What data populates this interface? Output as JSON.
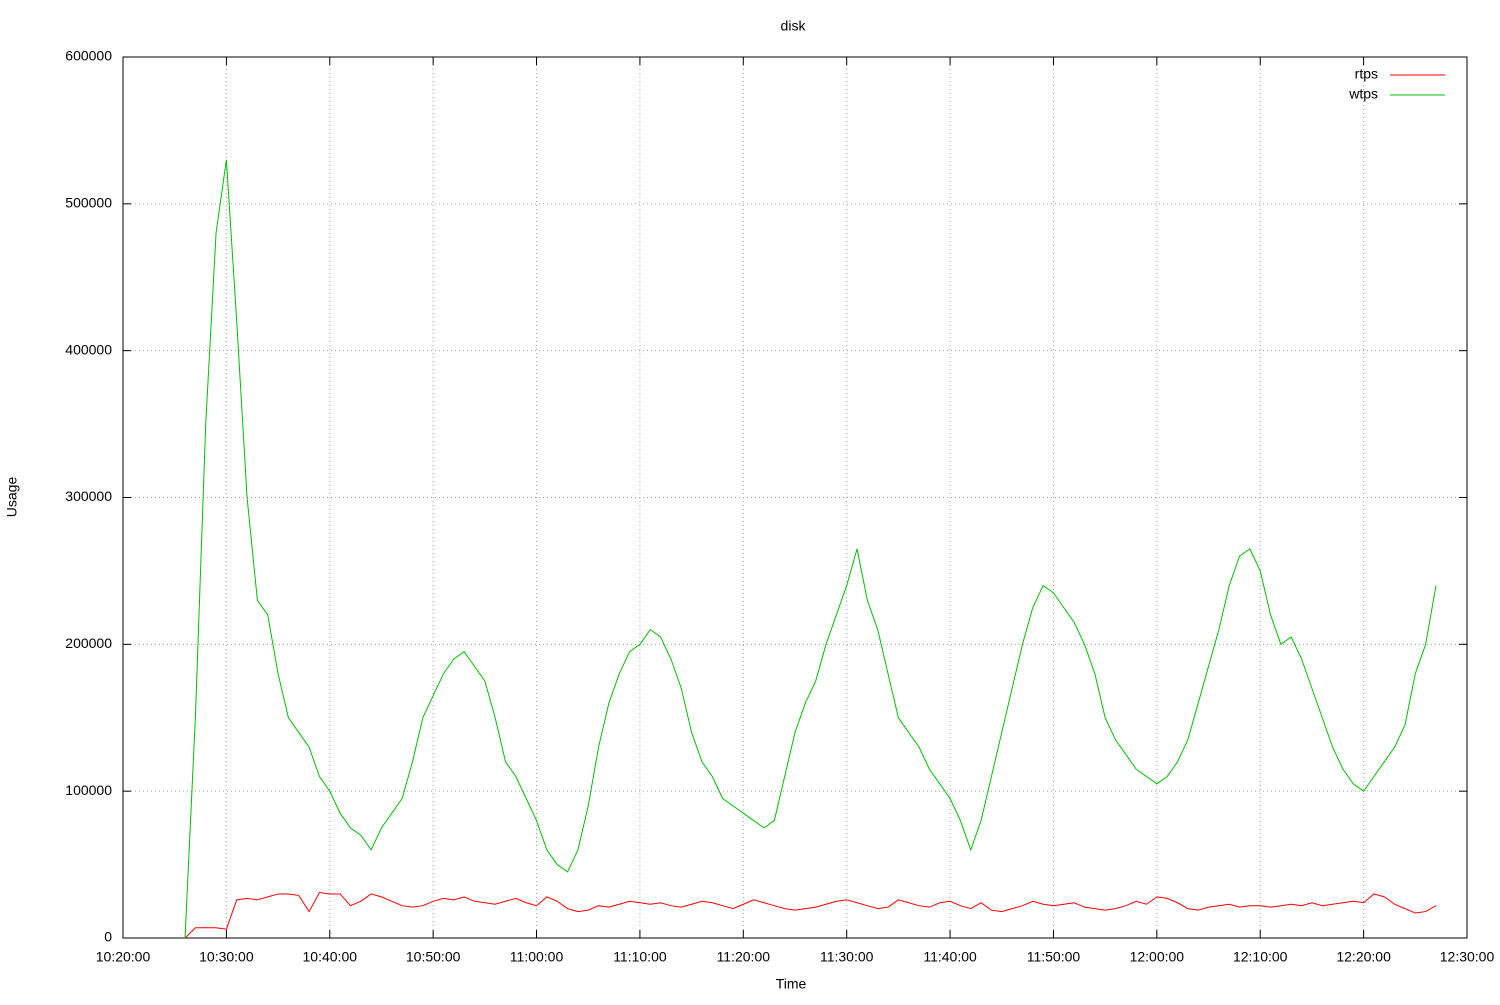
{
  "chart_data": {
    "type": "line",
    "title": "disk",
    "x_label": "Time",
    "y_label": "Usage",
    "xlim": [
      "10:20:00",
      "12:30:00"
    ],
    "xticks": [
      "10:20:00",
      "10:30:00",
      "10:40:00",
      "10:50:00",
      "11:00:00",
      "11:10:00",
      "11:20:00",
      "11:30:00",
      "11:40:00",
      "11:50:00",
      "12:00:00",
      "12:10:00",
      "12:20:00",
      "12:30:00"
    ],
    "ylim": [
      0,
      600000
    ],
    "yticks": [
      0,
      100000,
      200000,
      300000,
      400000,
      500000,
      600000
    ],
    "grid": true,
    "legend": "top-right",
    "x": [
      "10:26:00",
      "10:27:00",
      "10:28:00",
      "10:29:00",
      "10:30:00",
      "10:31:00",
      "10:32:00",
      "10:33:00",
      "10:34:00",
      "10:35:00",
      "10:36:00",
      "10:37:00",
      "10:38:00",
      "10:39:00",
      "10:40:00",
      "10:41:00",
      "10:42:00",
      "10:43:00",
      "10:44:00",
      "10:45:00",
      "10:46:00",
      "10:47:00",
      "10:48:00",
      "10:49:00",
      "10:50:00",
      "10:51:00",
      "10:52:00",
      "10:53:00",
      "10:54:00",
      "10:55:00",
      "10:56:00",
      "10:57:00",
      "10:58:00",
      "10:59:00",
      "11:00:00",
      "11:01:00",
      "11:02:00",
      "11:03:00",
      "11:04:00",
      "11:05:00",
      "11:06:00",
      "11:07:00",
      "11:08:00",
      "11:09:00",
      "11:10:00",
      "11:11:00",
      "11:12:00",
      "11:13:00",
      "11:14:00",
      "11:15:00",
      "11:16:00",
      "11:17:00",
      "11:18:00",
      "11:19:00",
      "11:20:00",
      "11:21:00",
      "11:22:00",
      "11:23:00",
      "11:24:00",
      "11:25:00",
      "11:26:00",
      "11:27:00",
      "11:28:00",
      "11:29:00",
      "11:30:00",
      "11:31:00",
      "11:32:00",
      "11:33:00",
      "11:34:00",
      "11:35:00",
      "11:36:00",
      "11:37:00",
      "11:38:00",
      "11:39:00",
      "11:40:00",
      "11:41:00",
      "11:42:00",
      "11:43:00",
      "11:44:00",
      "11:45:00",
      "11:46:00",
      "11:47:00",
      "11:48:00",
      "11:49:00",
      "11:50:00",
      "11:51:00",
      "11:52:00",
      "11:53:00",
      "11:54:00",
      "11:55:00",
      "11:56:00",
      "11:57:00",
      "11:58:00",
      "11:59:00",
      "12:00:00",
      "12:01:00",
      "12:02:00",
      "12:03:00",
      "12:04:00",
      "12:05:00",
      "12:06:00",
      "12:07:00",
      "12:08:00",
      "12:09:00",
      "12:10:00",
      "12:11:00",
      "12:12:00",
      "12:13:00",
      "12:14:00",
      "12:15:00",
      "12:16:00",
      "12:17:00",
      "12:18:00",
      "12:19:00",
      "12:20:00",
      "12:21:00",
      "12:22:00",
      "12:23:00",
      "12:24:00",
      "12:25:00",
      "12:26:00",
      "12:27:00"
    ],
    "series": [
      {
        "name": "rtps",
        "color": "#ff0000",
        "values": [
          0,
          7000,
          7000,
          7000,
          6000,
          26000,
          27000,
          26000,
          28000,
          30000,
          30000,
          29000,
          18000,
          31000,
          30000,
          30000,
          22000,
          25000,
          30000,
          28000,
          25000,
          22000,
          21000,
          22000,
          25000,
          27000,
          26000,
          28000,
          25000,
          24000,
          23000,
          25000,
          27000,
          24000,
          22000,
          28000,
          25000,
          20000,
          18000,
          19000,
          22000,
          21000,
          23000,
          25000,
          24000,
          23000,
          24000,
          22000,
          21000,
          23000,
          25000,
          24000,
          22000,
          20000,
          23000,
          26000,
          24000,
          22000,
          20000,
          19000,
          20000,
          21000,
          23000,
          25000,
          26000,
          24000,
          22000,
          20000,
          21000,
          26000,
          24000,
          22000,
          21000,
          24000,
          25000,
          22000,
          20000,
          24000,
          19000,
          18000,
          20000,
          22000,
          25000,
          23000,
          22000,
          23000,
          24000,
          21000,
          20000,
          19000,
          20000,
          22000,
          25000,
          23000,
          28000,
          27000,
          24000,
          20000,
          19000,
          21000,
          22000,
          23000,
          21000,
          22000,
          22000,
          21000,
          22000,
          23000,
          22000,
          24000,
          22000,
          23000,
          24000,
          25000,
          24000,
          30000,
          28000,
          23000,
          20000,
          17000,
          18000,
          22000
        ]
      },
      {
        "name": "wtps",
        "color": "#00c000",
        "values": [
          0,
          150000,
          350000,
          480000,
          530000,
          420000,
          300000,
          230000,
          220000,
          180000,
          150000,
          140000,
          130000,
          110000,
          100000,
          85000,
          75000,
          70000,
          60000,
          75000,
          85000,
          95000,
          120000,
          150000,
          165000,
          180000,
          190000,
          195000,
          185000,
          175000,
          150000,
          120000,
          110000,
          95000,
          80000,
          60000,
          50000,
          45000,
          60000,
          90000,
          130000,
          160000,
          180000,
          195000,
          200000,
          210000,
          205000,
          190000,
          170000,
          140000,
          120000,
          110000,
          95000,
          90000,
          85000,
          80000,
          75000,
          80000,
          110000,
          140000,
          160000,
          175000,
          200000,
          220000,
          240000,
          265000,
          230000,
          210000,
          180000,
          150000,
          140000,
          130000,
          115000,
          105000,
          95000,
          80000,
          60000,
          80000,
          110000,
          140000,
          170000,
          200000,
          225000,
          240000,
          235000,
          225000,
          215000,
          200000,
          180000,
          150000,
          135000,
          125000,
          115000,
          110000,
          105000,
          110000,
          120000,
          135000,
          160000,
          185000,
          210000,
          240000,
          260000,
          265000,
          250000,
          220000,
          200000,
          205000,
          190000,
          170000,
          150000,
          130000,
          115000,
          105000,
          100000,
          110000,
          120000,
          130000,
          145000,
          180000,
          200000,
          240000
        ]
      }
    ]
  }
}
